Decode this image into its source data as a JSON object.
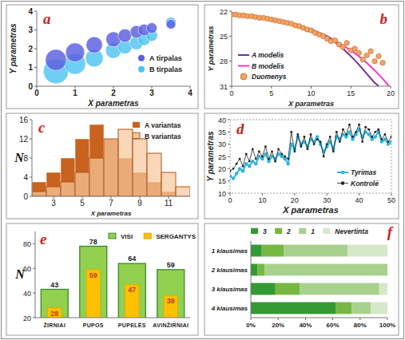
{
  "chart_data": [
    {
      "type": "bubble",
      "title": "a",
      "x_label": "X parametras",
      "y_label": "Y parametras",
      "xlim": [
        0,
        4
      ],
      "xticks": [
        0,
        1,
        2,
        3,
        4
      ],
      "ylim": [
        0,
        4
      ],
      "yticks": [
        0,
        1,
        2,
        3,
        4
      ],
      "legend": "right",
      "marker": "circle",
      "series": [
        {
          "name": "A tirpalas",
          "color": "#5a5ee0",
          "x": [
            0.5,
            1,
            1.5,
            2,
            2.3,
            2.6,
            2.8,
            3,
            3.5
          ],
          "values": [
            1.4,
            1.8,
            2.2,
            2.5,
            2.7,
            2.9,
            3.0,
            3.1,
            3.3
          ],
          "sizes": [
            10,
            8,
            6,
            5,
            4,
            3.5,
            3,
            2.5,
            2
          ]
        },
        {
          "name": "B tirpalas",
          "color": "#4ec3f0",
          "x": [
            0.5,
            1,
            1.5,
            2,
            2.3,
            2.6,
            2.8,
            3,
            3.5
          ],
          "values": [
            0.8,
            1.2,
            1.5,
            1.9,
            2.1,
            2.3,
            2.5,
            2.7,
            3.4
          ],
          "sizes": [
            14,
            10,
            7,
            5.5,
            4.5,
            4,
            3.5,
            3,
            2.5
          ]
        }
      ]
    },
    {
      "type": "line",
      "title": "b",
      "x_label": "X parametras",
      "y_label": "Y parametras",
      "xlim": [
        0,
        20
      ],
      "xticks": [
        0,
        5,
        10,
        15,
        20
      ],
      "ylim": [
        31,
        22
      ],
      "yticks": [
        22,
        25,
        28,
        31
      ],
      "legend": "lower left",
      "series": [
        {
          "name": "A modelis",
          "type": "line",
          "color": "#7030a0",
          "x": [
            0,
            2,
            4,
            6,
            8,
            10,
            12,
            13,
            14,
            15,
            16,
            17,
            18,
            18.5
          ],
          "values": [
            22.3,
            22.6,
            22.9,
            23.2,
            23.6,
            24.2,
            25.0,
            25.7,
            26.5,
            27.4,
            28.4,
            29.5,
            30.6,
            31
          ]
        },
        {
          "name": "B modelis",
          "type": "line",
          "color": "#ff33cc",
          "x": [
            10,
            12,
            13,
            14,
            15,
            16,
            17,
            18,
            19,
            19.8
          ],
          "values": [
            24.2,
            25.0,
            25.5,
            26.1,
            26.7,
            27.4,
            28.2,
            29.1,
            30.1,
            31
          ]
        },
        {
          "name": "Duomenys",
          "type": "scatter",
          "marker": "circle",
          "color": "#f4a460",
          "x": [
            0,
            0.5,
            1,
            1.5,
            2,
            2.5,
            3,
            3.5,
            4,
            4.5,
            5,
            5.5,
            6,
            6.5,
            7,
            7.5,
            8,
            8.5,
            9,
            9.5,
            10,
            10.5,
            11,
            11.5,
            12,
            12.5,
            13,
            13.5,
            14,
            14.5,
            15,
            15.5,
            16,
            16.5,
            17,
            17.5,
            18,
            18.5,
            19
          ],
          "values": [
            22.4,
            22.4,
            22.5,
            22.5,
            22.6,
            22.6,
            22.7,
            22.8,
            22.8,
            22.9,
            23.0,
            23.1,
            23.2,
            23.3,
            23.4,
            23.5,
            23.7,
            23.8,
            24.0,
            24.2,
            24.3,
            24.6,
            24.8,
            25.0,
            25.3,
            25.6,
            25.5,
            26.0,
            26.3,
            25.8,
            26.7,
            26.5,
            27.0,
            27.8,
            27.3,
            26.8,
            28.0,
            27.4,
            28.2
          ]
        }
      ]
    },
    {
      "type": "histogram",
      "title": "c",
      "x_label": "X parametras",
      "y_label": "N",
      "bins": [
        1.5,
        2.5,
        3.5,
        4.5,
        5.5,
        6.5,
        7.5,
        8.5,
        9.5,
        10.5,
        11.5,
        12.5
      ],
      "xlim": [
        1.5,
        12.5
      ],
      "xticks": [
        3,
        5,
        7,
        9,
        11
      ],
      "ylim": [
        0,
        16
      ],
      "yticks": [
        0,
        4,
        8,
        12,
        16
      ],
      "legend": "upper right",
      "series": [
        {
          "name": "A variantas",
          "color": "#c8621c",
          "values": [
            3,
            5,
            8,
            12,
            15,
            12,
            8,
            5,
            3,
            1,
            0
          ]
        },
        {
          "name": "B variantas",
          "color": "#f6c79c",
          "values": [
            1,
            2,
            3,
            5,
            8,
            12,
            14,
            12,
            9,
            5,
            2
          ]
        }
      ]
    },
    {
      "type": "line",
      "title": "d",
      "x_label": "X parametras",
      "y_label": "Y parametras",
      "x": [
        0,
        1,
        2,
        3,
        4,
        5,
        6,
        7,
        8,
        9,
        10,
        11,
        12,
        13,
        14,
        15,
        16,
        17,
        18,
        19,
        20,
        21,
        22,
        23,
        24,
        25,
        26,
        27,
        28,
        29,
        30,
        31,
        32,
        33,
        34,
        35,
        36,
        37,
        38,
        39,
        40,
        41,
        42,
        43,
        44,
        45,
        46,
        47,
        48,
        49,
        50
      ],
      "xlim": [
        0,
        50
      ],
      "xticks": [
        0,
        10,
        20,
        30,
        40,
        50
      ],
      "ylim": [
        10,
        40
      ],
      "yticks": [
        10,
        15,
        20,
        25,
        30,
        35,
        40
      ],
      "legend": "lower right",
      "marker": "circle",
      "series": [
        {
          "name": "Tyrimas",
          "color": "#2fb4e0",
          "values": [
            17,
            16,
            18,
            20,
            19,
            22,
            21,
            23,
            22,
            25,
            24,
            26,
            23,
            25,
            24,
            26,
            25,
            24,
            22,
            30,
            28,
            33,
            30,
            31,
            29,
            32,
            31,
            33,
            30,
            27,
            29,
            31,
            28,
            33,
            32,
            34,
            33,
            35,
            32,
            34,
            36,
            33,
            35,
            34,
            32,
            33,
            35,
            31,
            32,
            30,
            31
          ]
        },
        {
          "name": "Kontrolė",
          "color": "#222222",
          "values": [
            19,
            20,
            22,
            24,
            21,
            26,
            23,
            28,
            24,
            27,
            25,
            29,
            24,
            27,
            23,
            28,
            26,
            25,
            24,
            35,
            27,
            34,
            29,
            33,
            28,
            34,
            30,
            32,
            31,
            25,
            30,
            33,
            27,
            35,
            31,
            36,
            34,
            38,
            33,
            35,
            38,
            31,
            37,
            36,
            33,
            35,
            36,
            32,
            34,
            31,
            33
          ]
        }
      ]
    },
    {
      "type": "bar",
      "title": "e",
      "y_label": "N",
      "categories": [
        "ŽIRNIAI",
        "PUPOS",
        "PUPELĖS",
        "AVINŽIRNIAI"
      ],
      "ylim": [
        20,
        90
      ],
      "yticks": [
        20,
        40,
        60,
        80
      ],
      "legend": "upper right",
      "data_labels": true,
      "series": [
        {
          "name": "VISI",
          "color": "#92d050",
          "values": [
            43,
            78,
            64,
            59
          ]
        },
        {
          "name": "SERGANTYS",
          "color": "#ffc000",
          "values": [
            28,
            59,
            47,
            38
          ]
        }
      ]
    },
    {
      "type": "bar",
      "title": "f",
      "orientation": "horizontal",
      "stacked": true,
      "categories": [
        "1 klausimas",
        "2 klausimas",
        "3 klausimas",
        "4 klausimas"
      ],
      "xlim": [
        0,
        100
      ],
      "xticks": [
        {
          "value": 0,
          "label": "0%"
        },
        {
          "value": 20,
          "label": "20%"
        },
        {
          "value": 40,
          "label": "40%"
        },
        {
          "value": 60,
          "label": "60%"
        },
        {
          "value": 80,
          "label": "80%"
        },
        {
          "value": 100,
          "label": "100%"
        }
      ],
      "legend": "top",
      "series": [
        {
          "name": "3",
          "color": "#339933",
          "values": [
            8,
            5,
            18,
            62
          ]
        },
        {
          "name": "2",
          "color": "#77b843",
          "values": [
            16,
            5,
            18,
            12
          ]
        },
        {
          "name": "1",
          "color": "#a9d18e",
          "values": [
            47,
            90,
            58,
            14
          ]
        },
        {
          "name": "Nevertinta",
          "color": "#d5e8c8",
          "values": [
            29,
            0,
            6,
            12
          ]
        }
      ]
    }
  ]
}
